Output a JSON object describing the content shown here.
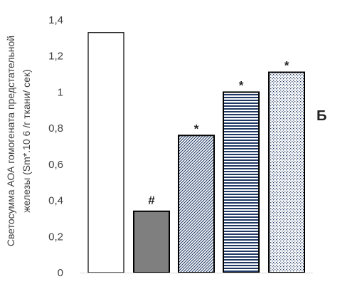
{
  "chart_data": {
    "type": "bar",
    "categories": [
      "",
      "",
      "",
      "",
      ""
    ],
    "values": [
      1.33,
      0.34,
      0.76,
      1.0,
      1.11
    ],
    "annotations": [
      "",
      "#",
      "*",
      "*",
      "*"
    ],
    "fills": [
      "white",
      "solid-gray",
      "diagonal-stripes",
      "horizontal-stripes",
      "dots"
    ],
    "ylim": [
      0,
      1.4
    ],
    "yticks": [
      "0",
      "0,2",
      "0,4",
      "0,6",
      "0,8",
      "1",
      "1,2",
      "1,4"
    ],
    "ytick_values": [
      0,
      0.2,
      0.4,
      0.6,
      0.8,
      1.0,
      1.2,
      1.4
    ],
    "ylabel_line1": "Светосумма АОА гомогената предстательной",
    "ylabel_line2": "железы (Sm*.10 6 /г ткани/ сек)",
    "panel_letter": "Б",
    "grid": false,
    "colors": {
      "bar_outline": "#000000",
      "bar_gray": "#7f7f7f",
      "pattern_blue": "#1f3864",
      "axis": "#d9d9d9"
    }
  }
}
